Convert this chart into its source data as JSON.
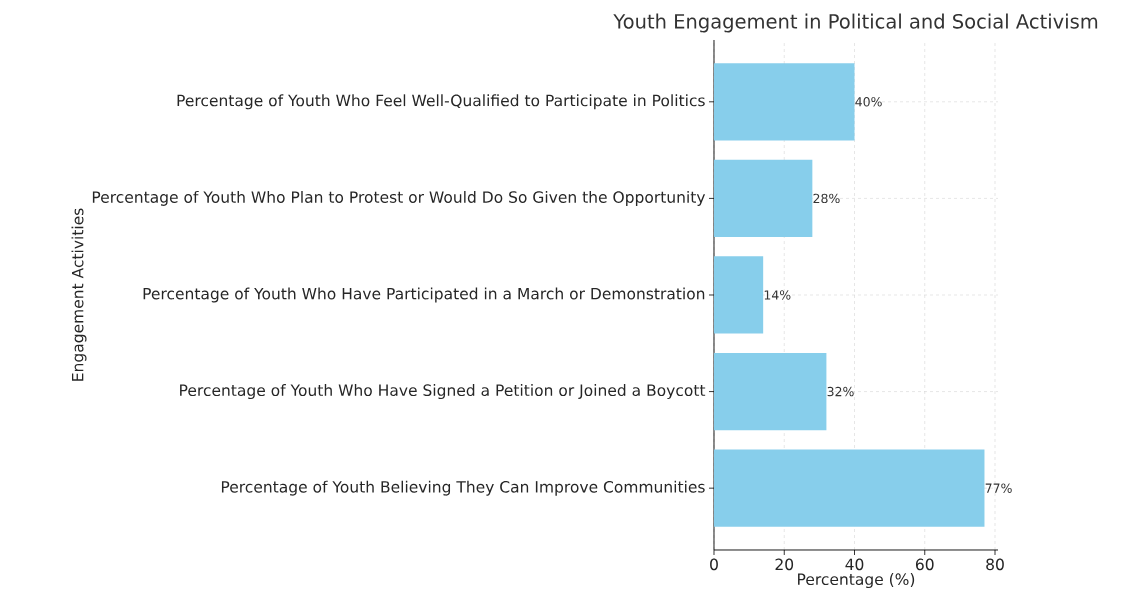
{
  "chart_data": {
    "type": "bar",
    "orientation": "horizontal",
    "title": "Youth Engagement in Political and Social Activism",
    "xlabel": "Percentage (%)",
    "ylabel": "Engagement Activities",
    "categories": [
      "Percentage of Youth Who Feel Well-Qualified to Participate in Politics",
      "Percentage of Youth Who Plan to Protest or Would Do So Given the Opportunity",
      "Percentage of Youth Who Have Participated in a March or Demonstration",
      "Percentage of Youth Who Have Signed a Petition or Joined a Boycott",
      "Percentage of Youth Believing They Can Improve Communities"
    ],
    "values": [
      40,
      28,
      14,
      32,
      77
    ],
    "value_labels": [
      "40%",
      "28%",
      "14%",
      "32%",
      "77%"
    ],
    "color": "#87ceeb",
    "xlim": [
      0,
      80.85
    ],
    "xticks": [
      0,
      20,
      40,
      60,
      80
    ],
    "grid": true
  }
}
